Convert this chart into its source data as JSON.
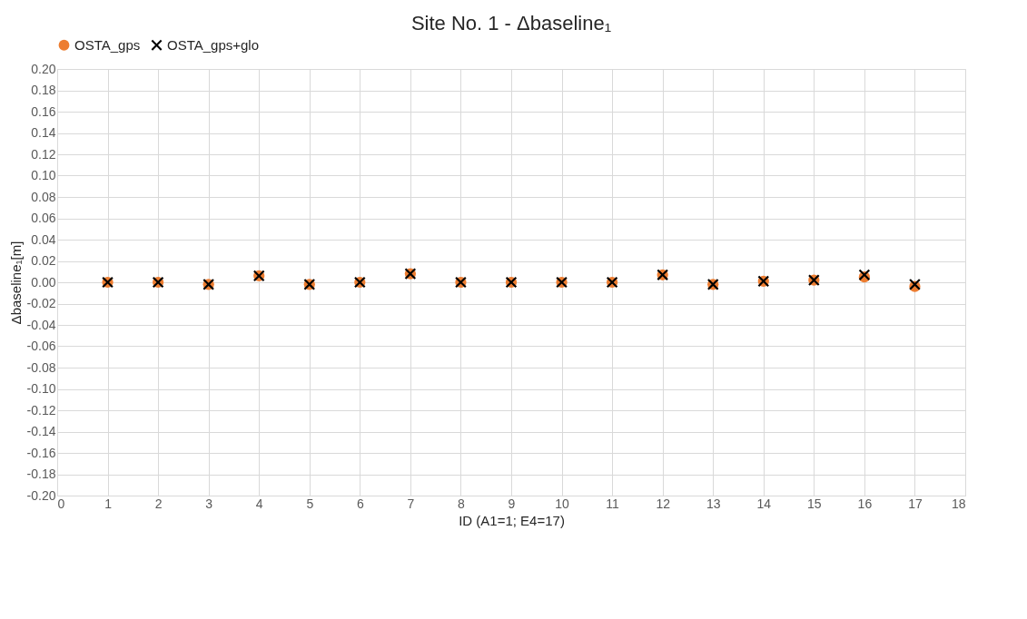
{
  "chart_data": {
    "type": "scatter",
    "title": "Site No. 1 - Δbaseline₁",
    "xlabel": "ID (A1=1; E4=17)",
    "ylabel": "Δbaseline₁[m]",
    "x": [
      1,
      2,
      3,
      4,
      5,
      6,
      7,
      8,
      9,
      10,
      11,
      12,
      13,
      14,
      15,
      16,
      17
    ],
    "series": [
      {
        "name": "OSTA_gps",
        "color": "#ed7d31",
        "marker": "circle",
        "values": [
          0.0,
          0.0,
          -0.002,
          0.006,
          -0.002,
          0.0,
          0.008,
          0.0,
          0.0,
          0.0,
          0.0,
          0.007,
          -0.002,
          0.001,
          0.002,
          0.005,
          -0.004
        ]
      },
      {
        "name": "OSTA_gps+glo",
        "color": "#000000",
        "marker": "cross",
        "values": [
          0.0,
          0.0,
          -0.002,
          0.006,
          -0.002,
          0.0,
          0.008,
          0.0,
          0.0,
          0.0,
          0.0,
          0.007,
          -0.002,
          0.001,
          0.002,
          0.007,
          -0.002
        ]
      }
    ],
    "xlim": [
      0,
      18
    ],
    "xticks": [
      0,
      1,
      2,
      3,
      4,
      5,
      6,
      7,
      8,
      9,
      10,
      11,
      12,
      13,
      14,
      15,
      16,
      17,
      18
    ],
    "ylim": [
      -0.2,
      0.2
    ],
    "yticks": [
      {
        "value": -0.2,
        "label": "-0.20"
      },
      {
        "value": -0.18,
        "label": "-0.18"
      },
      {
        "value": -0.16,
        "label": "-0.16"
      },
      {
        "value": -0.14,
        "label": "-0.14"
      },
      {
        "value": -0.12,
        "label": "-0.12"
      },
      {
        "value": -0.1,
        "label": "-0.10"
      },
      {
        "value": -0.08,
        "label": "-0.08"
      },
      {
        "value": -0.06,
        "label": "-0.06"
      },
      {
        "value": -0.04,
        "label": "-0.04"
      },
      {
        "value": -0.02,
        "label": "-0.02"
      },
      {
        "value": 0,
        "label": "0.00"
      },
      {
        "value": 0.02,
        "label": "0.02"
      },
      {
        "value": 0.04,
        "label": "0.04"
      },
      {
        "value": 0.06,
        "label": "0.06"
      },
      {
        "value": 0.08,
        "label": "0.08"
      },
      {
        "value": 0.1,
        "label": "0.10"
      },
      {
        "value": 0.12,
        "label": "0.12"
      },
      {
        "value": 0.14,
        "label": "0.14"
      },
      {
        "value": 0.16,
        "label": "0.16"
      },
      {
        "value": 0.18,
        "label": "0.18"
      },
      {
        "value": 0.2,
        "label": "0.20"
      }
    ],
    "grid": true,
    "legend": "top"
  }
}
